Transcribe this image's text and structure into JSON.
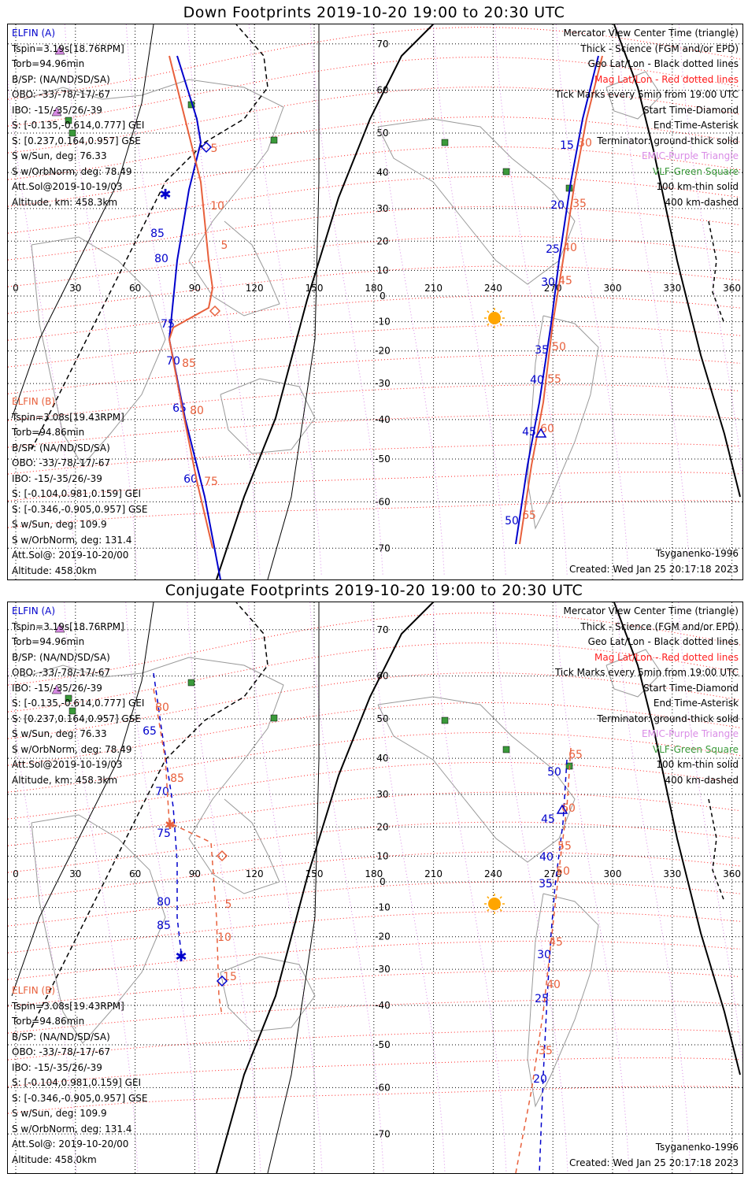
{
  "panels": [
    {
      "title": "Down Footprints 2019-10-20 19:00 to 20:30 UTC",
      "elfin_a": [
        "ELFIN (A)",
        "Tspin=3.19s[18.76RPM]",
        "Torb=94.96min",
        "B/SP: (NA/ND/SD/SA)",
        "OBO: -33/-78/-17/-67",
        "IBO: -15/-35/26/-39",
        "S: [-0.135,-0.614,0.777] GEI",
        "S: [0.237,0.164,0.957] GSE",
        "S w/Sun, deg: 76.33",
        "S w/OrbNorm, deg: 78.49",
        "Att.Sol@2019-10-19/03",
        "Altitude, km: 458.3km"
      ],
      "elfin_b": [
        "ELFIN (B)",
        "Tspin=3.08s[19.43RPM]",
        "Torb=94.86min",
        "B/SP: (NA/ND/SD/SA)",
        "OBO: -33/-78/-17/-67",
        "IBO: -15/-35/26/-39",
        "S: [-0.104,0.981,0.159] GEI",
        "S: [-0.346,-0.905,0.957] GSE",
        "S w/Sun, deg: 109.9",
        "S w/OrbNorm, deg: 131.4",
        "Att.Sol@: 2019-10-20/00",
        "Altitude: 458.0km"
      ],
      "model": "Tsyganenko-1996",
      "created": "Created: Wed Jan 25 20:17:18 2023"
    },
    {
      "title": "Conjugate Footprints 2019-10-20 19:00 to 20:30 UTC",
      "elfin_a": [
        "ELFIN (A)",
        "Tspin=3.19s[18.76RPM]",
        "Torb=94.96min",
        "B/SP: (NA/ND/SD/SA)",
        "OBO: -33/-78/-17/-67",
        "IBO: -15/-35/26/-39",
        "S: [-0.135,-0.614,0.777] GEI",
        "S: [0.237,0.164,0.957] GSE",
        "S w/Sun, deg: 76.33",
        "S w/OrbNorm, deg: 78.49",
        "Att.Sol@2019-10-19/03",
        "Altitude, km: 458.3km"
      ],
      "elfin_b": [
        "ELFIN (B)",
        "Tspin=3.08s[19.43RPM]",
        "Torb=94.86min",
        "B/SP: (NA/ND/SD/SA)",
        "OBO: -33/-78/-17/-67",
        "IBO: -15/-35/26/-39",
        "S: [-0.104,0.981,0.159] GEI",
        "S: [-0.346,-0.905,0.957] GSE",
        "S w/Sun, deg: 109.9",
        "S w/OrbNorm, deg: 131.4",
        "Att.Sol@: 2019-10-20/00",
        "Altitude: 458.0km"
      ],
      "model": "Tsyganenko-1996",
      "created": "Created: Wed Jan 25 20:17:18 2023"
    }
  ],
  "legend": {
    "line1": "Mercator View Center Time (triangle)",
    "line2": "Thick - Science (FGM and/or EPD)",
    "line3": "Geo Lat/Lon - Black dotted lines",
    "line4": "Mag Lat/Lon - Red dotted lines",
    "line5": "Tick Marks every 5min from 19:00 UTC",
    "line6": "Start Time-Diamond",
    "line7": "End Time-Asterisk",
    "line8": "Terminator: ground-thick solid",
    "line9": "EMIC-Purple Triangle",
    "line10": "VLF-Green Square",
    "line11": "100 km-thin solid",
    "line12": "400 km-dashed"
  },
  "map": {
    "lon_labels": [
      "0",
      "30",
      "60",
      "90",
      "120",
      "150",
      "180",
      "210",
      "240",
      "270",
      "300",
      "330",
      "360"
    ],
    "lat_labels": [
      "70",
      "60",
      "50",
      "40",
      "30",
      "20",
      "10",
      "0",
      "-10",
      "-20",
      "-30",
      "-40",
      "-50",
      "-60",
      "-70"
    ],
    "colors": {
      "elfin_a": "#0000cc",
      "elfin_b": "#e8603c",
      "mag_grid": "#ff2020",
      "emic": "#d98ce6",
      "vlf": "#3a9a3a",
      "sun": "#ffa500"
    }
  },
  "tracks": {
    "down": {
      "a_west_ticks": [
        "85",
        "80",
        "75",
        "70",
        "65",
        "60"
      ],
      "b_west_ticks": [
        "5",
        "10",
        "5",
        "85",
        "80",
        "75"
      ],
      "a_east_ticks": [
        "15",
        "20",
        "25",
        "30",
        "35",
        "40",
        "45",
        "50"
      ],
      "b_east_ticks": [
        "30",
        "35",
        "40",
        "45",
        "50",
        "55",
        "60",
        "65"
      ]
    },
    "conjugate": {
      "a_west_ticks": [
        "65",
        "70",
        "75",
        "80",
        "85"
      ],
      "b_west_ticks": [
        "80",
        "85",
        "5",
        "10",
        "15"
      ],
      "a_east_ticks": [
        "50",
        "45",
        "40",
        "35",
        "30",
        "25",
        "20"
      ],
      "b_east_ticks": [
        "65",
        "60",
        "55",
        "50",
        "45",
        "40",
        "35"
      ]
    }
  }
}
